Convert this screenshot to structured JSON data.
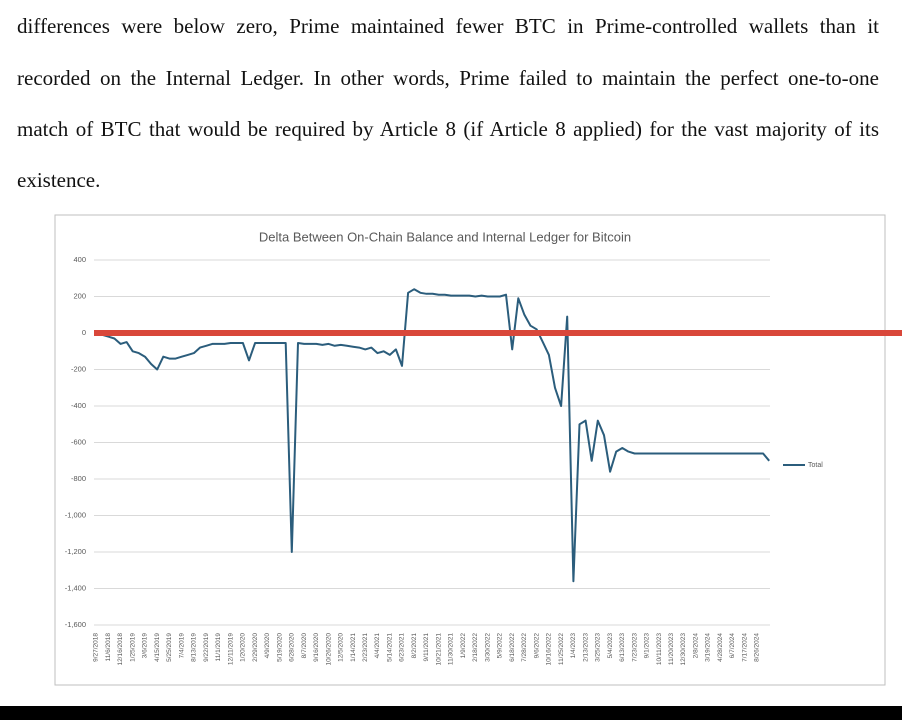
{
  "paragraph": {
    "lines": [
      "differences were below zero, Prime maintained fewer BTC in Prime-controlled wallets than it",
      "recorded on the Internal Ledger.  In other words, Prime failed to maintain the perfect one-to-one",
      "match of BTC that would be required by Article 8 (if Article 8 applied) for the vast majority of its",
      "existence."
    ]
  },
  "chart_data": {
    "type": "line",
    "title": "Delta Between On-Chain Balance and Internal Ledger for Bitcoin",
    "categories": [
      "9/27/2018",
      null,
      "11/6/2018",
      null,
      "12/16/2018",
      null,
      "1/25/2019",
      null,
      "3/6/2019",
      null,
      "4/15/2019",
      null,
      "5/25/2019",
      null,
      "7/4/2019",
      null,
      "8/13/2019",
      null,
      "9/22/2019",
      null,
      "11/1/2019",
      null,
      "12/11/2019",
      null,
      "1/20/2020",
      null,
      "2/29/2020",
      null,
      "4/9/2020",
      null,
      "5/19/2020",
      null,
      "6/28/2020",
      null,
      "8/7/2020",
      null,
      "9/16/2020",
      null,
      "10/26/2020",
      null,
      "12/5/2020",
      null,
      "1/14/2021",
      null,
      "2/23/2021",
      null,
      "4/4/2021",
      null,
      "5/14/2021",
      null,
      "6/23/2021",
      null,
      "8/2/2021",
      null,
      "9/11/2021",
      null,
      "10/21/2021",
      null,
      "11/30/2021",
      null,
      "1/9/2022",
      null,
      "2/18/2022",
      null,
      "3/30/2022",
      null,
      "5/9/2022",
      null,
      "6/18/2022",
      null,
      "7/28/2022",
      null,
      "9/6/2022",
      null,
      "10/16/2022",
      null,
      "11/25/2022",
      null,
      "1/4/2023",
      null,
      "2/13/2023",
      null,
      "3/25/2023",
      null,
      "5/4/2023",
      null,
      "6/13/2023",
      null,
      "7/23/2023",
      null,
      "9/1/2023",
      null,
      "10/11/2023",
      null,
      "11/20/2023",
      null,
      "12/30/2023",
      null,
      "2/8/2024",
      null,
      "3/19/2024",
      null,
      "4/28/2024",
      null,
      "6/7/2024",
      null,
      "7/17/2024",
      null,
      "8/26/2024",
      null,
      null
    ],
    "series": [
      {
        "name": "Total",
        "color": "#2b5d7c",
        "values": [
          -5,
          -10,
          -20,
          -30,
          -60,
          -50,
          -100,
          -110,
          -130,
          -170,
          -200,
          -130,
          -140,
          -140,
          -130,
          -120,
          -110,
          -80,
          -70,
          -60,
          -60,
          -60,
          -55,
          -55,
          -55,
          -150,
          -55,
          -55,
          -55,
          -55,
          -55,
          -55,
          -1200,
          -55,
          -60,
          -60,
          -60,
          -65,
          -60,
          -70,
          -65,
          -70,
          -75,
          -80,
          -90,
          -80,
          -110,
          -100,
          -120,
          -90,
          -180,
          220,
          240,
          220,
          215,
          215,
          210,
          210,
          205,
          205,
          205,
          205,
          200,
          205,
          200,
          200,
          200,
          210,
          -90,
          190,
          100,
          40,
          20,
          -50,
          -120,
          -300,
          -400,
          90,
          -1360,
          -500,
          -480,
          -700,
          -480,
          -560,
          -760,
          -650,
          -630,
          -650,
          -660,
          -660,
          -660,
          -660,
          -660,
          -660,
          -660,
          -660,
          -660,
          -660,
          -660,
          -660,
          -660,
          -660,
          -660,
          -660,
          -660,
          -660,
          -660,
          -660,
          -660,
          -660,
          -700
        ]
      }
    ],
    "ylim": [
      -1600,
      400
    ],
    "yticks": [
      {
        "value": -1600,
        "label": "-1,600"
      },
      {
        "value": -1400,
        "label": "-1,400"
      },
      {
        "value": -1200,
        "label": "-1,200"
      },
      {
        "value": -1000,
        "label": "-1,000"
      },
      -800,
      -600,
      -400,
      -200,
      0,
      200,
      400
    ],
    "grid": true,
    "legend": "right"
  }
}
